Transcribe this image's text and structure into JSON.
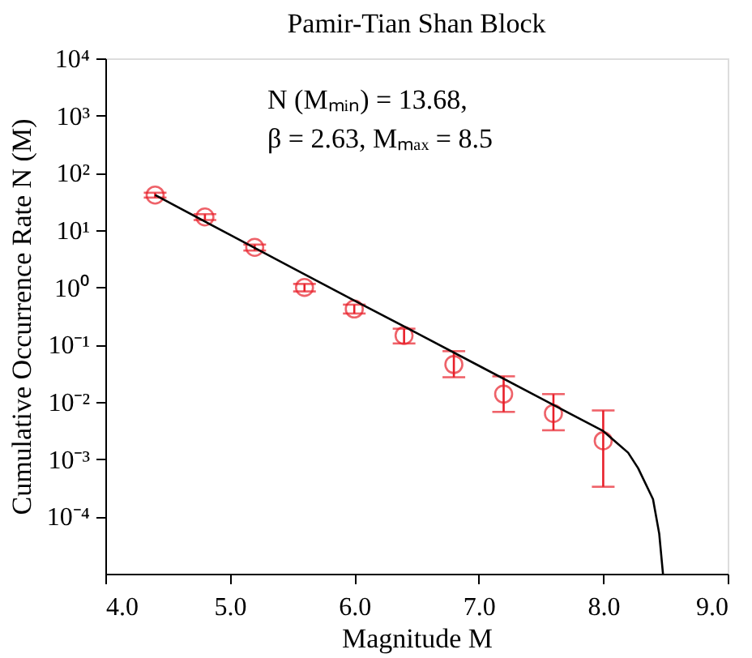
{
  "chart_data": {
    "type": "scatter",
    "title": "Pamir-Tian Shan Block",
    "xlabel": "Magnitude M",
    "ylabel": "Cumulative Occurrence Rate N (M)",
    "annotations": [
      "N (Mₘᵢₙ) = 13.68,",
      "β = 2.63, Mₘₐₓ = 8.5"
    ],
    "x": [
      4.4,
      4.8,
      5.2,
      5.6,
      6.0,
      6.4,
      6.8,
      7.2,
      7.6,
      8.0
    ],
    "series": [
      {
        "color": "#e8202a",
        "marker": "circle",
        "values": [
          41,
          17,
          5,
          1.0,
          0.42,
          0.145,
          0.045,
          0.0137,
          0.0063,
          0.0021
        ],
        "errors": [
          [
            37,
            45
          ],
          [
            15,
            19
          ],
          [
            4.4,
            5.6
          ],
          [
            0.85,
            1.15
          ],
          [
            0.35,
            0.5
          ],
          [
            0.105,
            0.19
          ],
          [
            0.027,
            0.077
          ],
          [
            0.0067,
            0.028
          ],
          [
            0.0032,
            0.0137
          ],
          [
            0.00033,
            0.0071
          ]
        ]
      },
      {
        "type": "line",
        "color": "#000000",
        "line_style": "solid",
        "x": [
          4.4,
          5.0,
          5.5,
          6.0,
          6.5,
          7.0,
          7.5,
          8.0,
          8.2,
          8.28,
          8.4,
          8.45,
          8.48
        ],
        "values": [
          41,
          8.3,
          2.2,
          0.59,
          0.16,
          0.043,
          0.0115,
          0.0031,
          0.0013,
          0.0007,
          0.0002,
          5e-05,
          1e-05
        ]
      }
    ],
    "xlim": [
      4.0,
      9.0
    ],
    "xticks": [
      {
        "value": 4,
        "label": "4.0"
      },
      {
        "value": 5,
        "label": "5.0"
      },
      {
        "value": 6,
        "label": "6.0"
      },
      {
        "value": 7,
        "label": "7.0"
      },
      {
        "value": 8,
        "label": "8.0"
      },
      {
        "value": 9,
        "label": "9.0"
      }
    ],
    "ylim": [
      1e-05,
      10000
    ],
    "yticks": [
      {
        "value": 0.0001,
        "label": "10⁻⁴"
      },
      {
        "value": 0.001,
        "label": "10⁻³"
      },
      {
        "value": 0.01,
        "label": "10⁻²"
      },
      {
        "value": 0.1,
        "label": "10⁻¹"
      },
      {
        "value": 1,
        "label": "10⁰"
      },
      {
        "value": 10,
        "label": "10¹"
      },
      {
        "value": 100,
        "label": "10²"
      },
      {
        "value": 1000,
        "label": "10³"
      },
      {
        "value": 10000,
        "label": "10⁴"
      }
    ],
    "log": "y",
    "grid": false
  }
}
